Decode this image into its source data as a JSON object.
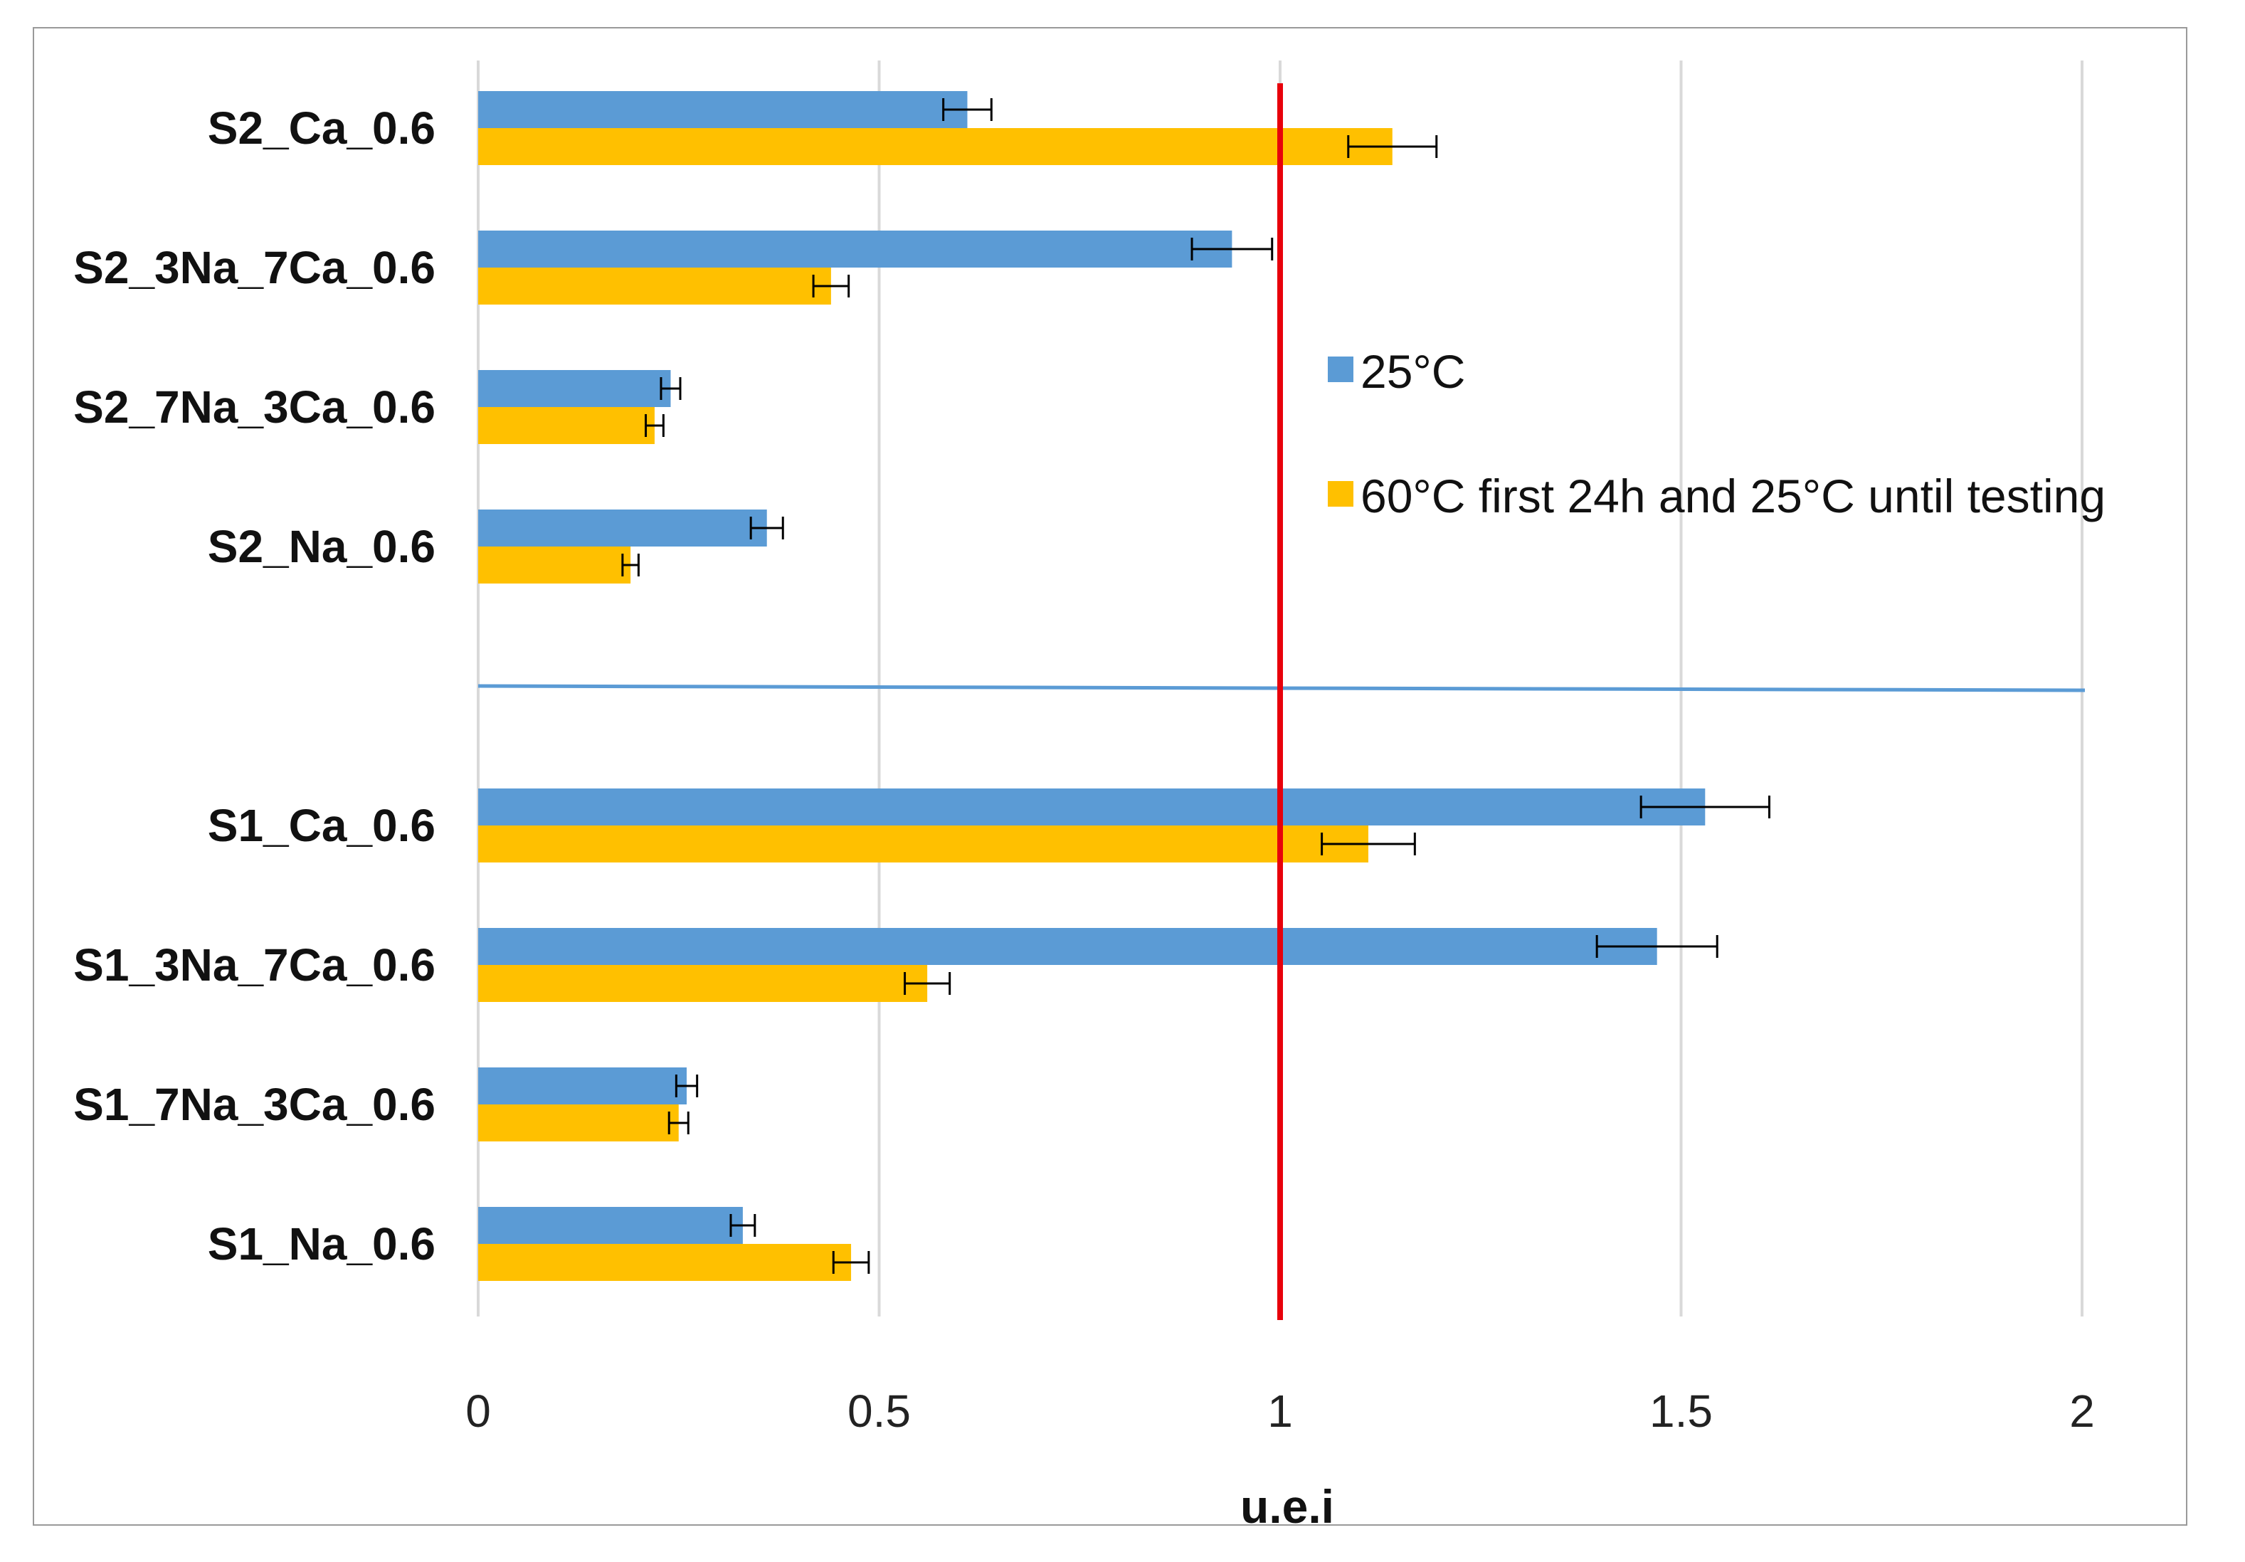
{
  "chart_data": {
    "type": "bar",
    "orientation": "horizontal",
    "title": "",
    "xlabel": "u.e.i",
    "ylabel": "",
    "xlim": [
      0,
      2
    ],
    "xticks": [
      0,
      0.5,
      1,
      1.5,
      2
    ],
    "xtick_labels": [
      "0",
      "0.5",
      "1",
      "1.5",
      "2"
    ],
    "grid": "vertical",
    "reference_line": {
      "x": 1,
      "color": "#e8000b"
    },
    "categories": [
      "S2_Ca_0.6",
      "S2_3Na_7Ca_0.6",
      "S2_7Na_3Ca_0.6",
      "S2_Na_0.6",
      "S1_Ca_0.6",
      "S1_3Na_7Ca_0.6",
      "S1_7Na_3Ca_0.6",
      "S1_Na_0.6"
    ],
    "group_separator_after": 3,
    "series": [
      {
        "name": "25°C",
        "color": "#5b9bd5",
        "values": [
          0.61,
          0.94,
          0.24,
          0.36,
          1.53,
          1.47,
          0.26,
          0.33
        ],
        "errors": [
          0.03,
          0.05,
          0.012,
          0.02,
          0.08,
          0.075,
          0.013,
          0.015
        ]
      },
      {
        "name": "60°C first 24h and 25°C until testing",
        "color": "#ffc000",
        "values": [
          1.14,
          0.44,
          0.22,
          0.19,
          1.11,
          0.56,
          0.25,
          0.465
        ],
        "errors": [
          0.055,
          0.022,
          0.011,
          0.01,
          0.058,
          0.028,
          0.012,
          0.022
        ]
      }
    ],
    "legend_position": "right"
  }
}
